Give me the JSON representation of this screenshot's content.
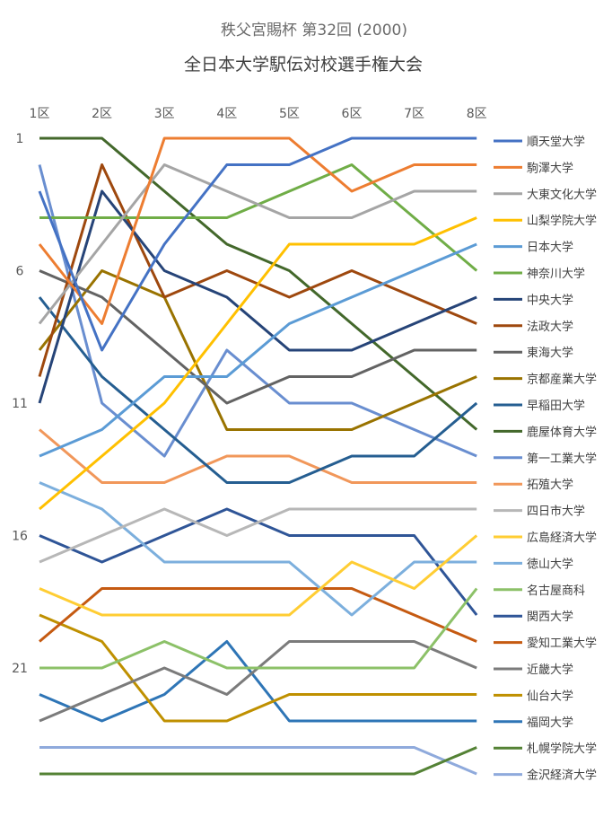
{
  "chart_data": {
    "type": "line",
    "subtitle": "秩父宮賜杯 第32回 (2000)",
    "title": "全日本大学駅伝対校選手権大会",
    "categories": [
      "1区",
      "2区",
      "3区",
      "4区",
      "5区",
      "6区",
      "7区",
      "8区"
    ],
    "y_ticks": [
      1,
      6,
      11,
      16,
      21
    ],
    "ylim": [
      1,
      25
    ],
    "y_inverted": true,
    "x_axis_position": "top",
    "legend_position": "right",
    "grid": false,
    "series": [
      {
        "name": "順天堂大学",
        "color": "#4472C4",
        "values": [
          3,
          9,
          5,
          2,
          2,
          1,
          1,
          1
        ]
      },
      {
        "name": "駒澤大学",
        "color": "#ED7D31",
        "values": [
          5,
          8,
          1,
          1,
          1,
          3,
          2,
          2
        ]
      },
      {
        "name": "大東文化大学",
        "color": "#A5A5A5",
        "values": [
          8,
          5,
          2,
          3,
          4,
          4,
          3,
          3
        ]
      },
      {
        "name": "山梨学院大学",
        "color": "#FFC000",
        "values": [
          15,
          13,
          11,
          8,
          5,
          5,
          5,
          4
        ]
      },
      {
        "name": "日本大学",
        "color": "#5B9BD5",
        "values": [
          13,
          12,
          10,
          10,
          8,
          7,
          6,
          5
        ]
      },
      {
        "name": "神奈川大学",
        "color": "#70AD47",
        "values": [
          4,
          4,
          4,
          4,
          3,
          2,
          4,
          6
        ]
      },
      {
        "name": "中央大学",
        "color": "#264478",
        "values": [
          11,
          3,
          6,
          7,
          9,
          9,
          8,
          7
        ]
      },
      {
        "name": "法政大学",
        "color": "#9E480E",
        "values": [
          10,
          2,
          7,
          6,
          7,
          6,
          7,
          8
        ]
      },
      {
        "name": "東海大学",
        "color": "#636363",
        "values": [
          6,
          7,
          9,
          11,
          10,
          10,
          9,
          9
        ]
      },
      {
        "name": "京都産業大学",
        "color": "#997300",
        "values": [
          9,
          6,
          7,
          12,
          12,
          12,
          11,
          10
        ]
      },
      {
        "name": "早稲田大学",
        "color": "#255E91",
        "values": [
          7,
          10,
          12,
          14,
          14,
          13,
          13,
          11
        ]
      },
      {
        "name": "鹿屋体育大学",
        "color": "#43682B",
        "values": [
          1,
          1,
          3,
          5,
          6,
          8,
          10,
          12
        ]
      },
      {
        "name": "第一工業大学",
        "color": "#698ED0",
        "values": [
          2,
          11,
          13,
          9,
          11,
          11,
          12,
          13
        ]
      },
      {
        "name": "拓殖大学",
        "color": "#F1975A",
        "values": [
          12,
          14,
          14,
          13,
          13,
          14,
          14,
          14
        ]
      },
      {
        "name": "四日市大学",
        "color": "#B7B7B7",
        "values": [
          17,
          16,
          15,
          16,
          15,
          15,
          15,
          15
        ]
      },
      {
        "name": "広島経済大学",
        "color": "#FFCD33",
        "values": [
          18,
          19,
          19,
          19,
          19,
          17,
          18,
          16
        ]
      },
      {
        "name": "徳山大学",
        "color": "#7CAFDD",
        "values": [
          14,
          15,
          17,
          17,
          17,
          19,
          17,
          17
        ]
      },
      {
        "name": "名古屋商科",
        "color": "#8CC168",
        "values": [
          21,
          21,
          20,
          21,
          21,
          21,
          21,
          18
        ]
      },
      {
        "name": "関西大学",
        "color": "#2F5597",
        "values": [
          16,
          17,
          16,
          15,
          16,
          16,
          16,
          19
        ]
      },
      {
        "name": "愛知工業大学",
        "color": "#C55A11",
        "values": [
          20,
          18,
          18,
          18,
          18,
          18,
          19,
          20
        ]
      },
      {
        "name": "近畿大学",
        "color": "#7B7B7B",
        "values": [
          23,
          22,
          21,
          22,
          20,
          20,
          20,
          21
        ]
      },
      {
        "name": "仙台大学",
        "color": "#BF9000",
        "values": [
          19,
          20,
          23,
          23,
          22,
          22,
          22,
          22
        ]
      },
      {
        "name": "福岡大学",
        "color": "#2E75B6",
        "values": [
          22,
          23,
          22,
          20,
          23,
          23,
          23,
          23
        ]
      },
      {
        "name": "札幌学院大学",
        "color": "#548235",
        "values": [
          25,
          25,
          25,
          25,
          25,
          25,
          25,
          24
        ]
      },
      {
        "name": "金沢経済大学",
        "color": "#8FAADC",
        "values": [
          24,
          24,
          24,
          24,
          24,
          24,
          24,
          25
        ]
      }
    ]
  }
}
